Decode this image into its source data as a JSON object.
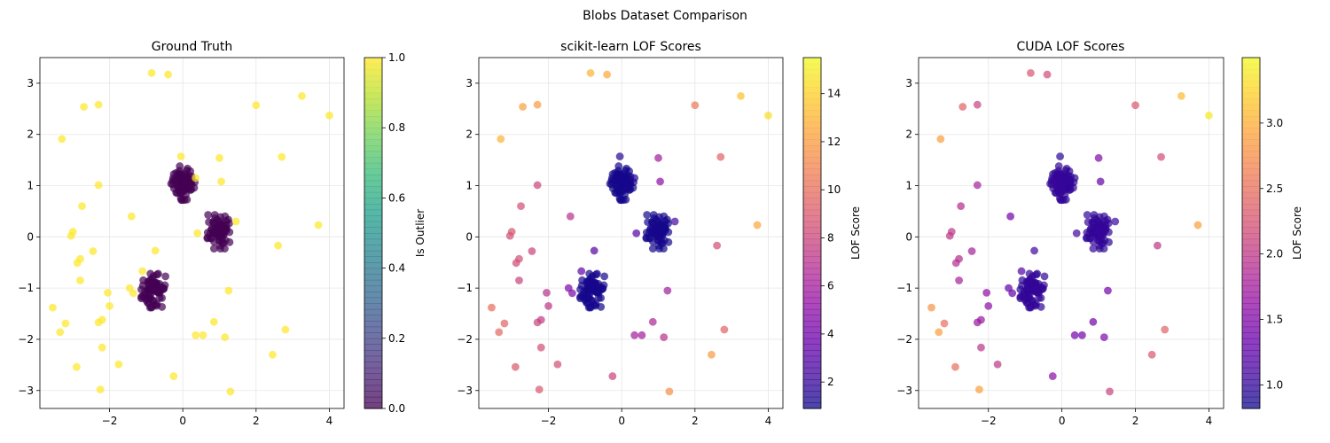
{
  "figure_title": "Blobs Dataset Comparison",
  "chart_data": [
    {
      "type": "scatter",
      "title": "Ground Truth",
      "xlabel": "",
      "ylabel": "",
      "xlim": [
        -3.9,
        4.4
      ],
      "ylim": [
        -3.35,
        3.5
      ],
      "xticks": [
        -2,
        0,
        2,
        4
      ],
      "yticks": [
        -3,
        -2,
        -1,
        0,
        1,
        2,
        3
      ],
      "grid": true,
      "colorbar": {
        "label": "Is Outlier",
        "colormap": "viridis",
        "range": [
          0.0,
          1.0
        ],
        "ticks": [
          0.0,
          0.2,
          0.4,
          0.6,
          0.8,
          1.0
        ],
        "tick_labels": [
          "0.0",
          "0.2",
          "0.4",
          "0.6",
          "0.8",
          "1.0"
        ]
      },
      "color_key": "is_outlier"
    },
    {
      "type": "scatter",
      "title": "scikit-learn LOF Scores",
      "xlabel": "",
      "ylabel": "",
      "xlim": [
        -3.9,
        4.4
      ],
      "ylim": [
        -3.35,
        3.5
      ],
      "xticks": [
        -2,
        0,
        2,
        4
      ],
      "yticks": [
        -3,
        -2,
        -1,
        0,
        1,
        2,
        3
      ],
      "grid": true,
      "colorbar": {
        "label": "LOF Score",
        "colormap": "plasma",
        "range": [
          0.9,
          15.5
        ],
        "ticks": [
          2,
          4,
          6,
          8,
          10,
          12,
          14
        ],
        "tick_labels": [
          "2",
          "4",
          "6",
          "8",
          "10",
          "12",
          "14"
        ]
      },
      "color_key": "sk_score"
    },
    {
      "type": "scatter",
      "title": "CUDA LOF Scores",
      "xlabel": "",
      "ylabel": "",
      "xlim": [
        -3.9,
        4.4
      ],
      "ylim": [
        -3.35,
        3.5
      ],
      "xticks": [
        -2,
        0,
        2,
        4
      ],
      "yticks": [
        -3,
        -2,
        -1,
        0,
        1,
        2,
        3
      ],
      "grid": true,
      "colorbar": {
        "label": "LOF Score",
        "colormap": "plasma",
        "range": [
          0.82,
          3.5
        ],
        "ticks": [
          1.0,
          1.5,
          2.0,
          2.5,
          3.0
        ],
        "tick_labels": [
          "1.0",
          "1.5",
          "2.0",
          "2.5",
          "3.0"
        ]
      },
      "color_key": "cuda_score"
    }
  ],
  "clusters": [
    {
      "center": [
        0.0,
        1.05
      ],
      "count": 75,
      "spread": 0.16,
      "is_outlier": 0,
      "sk_score": 1.0,
      "cuda_score": 0.97
    },
    {
      "center": [
        1.0,
        0.1
      ],
      "count": 75,
      "spread": 0.16,
      "is_outlier": 0,
      "sk_score": 1.0,
      "cuda_score": 0.97
    },
    {
      "center": [
        -0.8,
        -1.05
      ],
      "count": 75,
      "spread": 0.16,
      "is_outlier": 0,
      "sk_score": 1.0,
      "cuda_score": 0.97
    }
  ],
  "points": [
    {
      "x": -0.85,
      "y": 3.2,
      "is_outlier": 1,
      "sk_score": 13.0,
      "cuda_score": 2.3
    },
    {
      "x": -0.4,
      "y": 3.17,
      "is_outlier": 1,
      "sk_score": 12.6,
      "cuda_score": 2.2
    },
    {
      "x": 3.25,
      "y": 2.75,
      "is_outlier": 1,
      "sk_score": 13.6,
      "cuda_score": 3.1
    },
    {
      "x": 4.0,
      "y": 2.37,
      "is_outlier": 1,
      "sk_score": 14.6,
      "cuda_score": 3.4
    },
    {
      "x": -2.3,
      "y": 2.58,
      "is_outlier": 1,
      "sk_score": 12.0,
      "cuda_score": 2.1
    },
    {
      "x": -2.7,
      "y": 2.54,
      "is_outlier": 1,
      "sk_score": 12.3,
      "cuda_score": 2.4
    },
    {
      "x": 2.0,
      "y": 2.57,
      "is_outlier": 1,
      "sk_score": 10.5,
      "cuda_score": 2.3
    },
    {
      "x": -3.3,
      "y": 1.91,
      "is_outlier": 1,
      "sk_score": 13.0,
      "cuda_score": 2.9
    },
    {
      "x": 2.7,
      "y": 1.56,
      "is_outlier": 1,
      "sk_score": 9.5,
      "cuda_score": 2.2
    },
    {
      "x": 1.0,
      "y": 1.54,
      "is_outlier": 1,
      "sk_score": 6.0,
      "cuda_score": 1.5
    },
    {
      "x": -0.05,
      "y": 1.57,
      "is_outlier": 1,
      "sk_score": 1.5,
      "cuda_score": 0.95
    },
    {
      "x": 1.05,
      "y": 1.08,
      "is_outlier": 1,
      "sk_score": 5.2,
      "cuda_score": 1.3
    },
    {
      "x": -2.3,
      "y": 1.01,
      "is_outlier": 1,
      "sk_score": 8.0,
      "cuda_score": 1.8
    },
    {
      "x": 0.35,
      "y": 1.15,
      "is_outlier": 1,
      "sk_score": 1.5,
      "cuda_score": 0.95
    },
    {
      "x": -2.75,
      "y": 0.6,
      "is_outlier": 1,
      "sk_score": 8.5,
      "cuda_score": 1.9
    },
    {
      "x": -1.4,
      "y": 0.4,
      "is_outlier": 1,
      "sk_score": 7.0,
      "cuda_score": 1.4
    },
    {
      "x": -0.75,
      "y": -0.27,
      "is_outlier": 1,
      "sk_score": 3.0,
      "cuda_score": 1.1
    },
    {
      "x": 0.4,
      "y": 0.07,
      "is_outlier": 1,
      "sk_score": 3.0,
      "cuda_score": 1.1
    },
    {
      "x": 1.45,
      "y": 0.3,
      "is_outlier": 1,
      "sk_score": 2.5,
      "cuda_score": 1.05
    },
    {
      "x": 2.6,
      "y": -0.17,
      "is_outlier": 1,
      "sk_score": 8.5,
      "cuda_score": 2.0
    },
    {
      "x": 3.7,
      "y": 0.23,
      "is_outlier": 1,
      "sk_score": 12.5,
      "cuda_score": 2.9
    },
    {
      "x": -3.0,
      "y": 0.1,
      "is_outlier": 1,
      "sk_score": 8.8,
      "cuda_score": 2.0
    },
    {
      "x": -3.05,
      "y": 0.02,
      "is_outlier": 1,
      "sk_score": 8.5,
      "cuda_score": 2.0
    },
    {
      "x": -2.45,
      "y": -0.28,
      "is_outlier": 1,
      "sk_score": 8.0,
      "cuda_score": 1.8
    },
    {
      "x": -2.8,
      "y": -0.43,
      "is_outlier": 1,
      "sk_score": 8.5,
      "cuda_score": 1.9
    },
    {
      "x": -2.88,
      "y": -0.51,
      "is_outlier": 1,
      "sk_score": 8.3,
      "cuda_score": 1.9
    },
    {
      "x": -2.8,
      "y": -0.85,
      "is_outlier": 1,
      "sk_score": 8.0,
      "cuda_score": 1.8
    },
    {
      "x": -1.1,
      "y": -0.67,
      "is_outlier": 1,
      "sk_score": 3.5,
      "cuda_score": 1.2
    },
    {
      "x": -1.45,
      "y": -1.0,
      "is_outlier": 1,
      "sk_score": 4.5,
      "cuda_score": 1.3
    },
    {
      "x": -1.35,
      "y": -1.1,
      "is_outlier": 1,
      "sk_score": 4.5,
      "cuda_score": 1.3
    },
    {
      "x": -2.05,
      "y": -1.09,
      "is_outlier": 1,
      "sk_score": 7.0,
      "cuda_score": 1.6
    },
    {
      "x": -2.0,
      "y": -1.35,
      "is_outlier": 1,
      "sk_score": 7.2,
      "cuda_score": 1.6
    },
    {
      "x": 1.25,
      "y": -1.05,
      "is_outlier": 1,
      "sk_score": 6.0,
      "cuda_score": 1.4
    },
    {
      "x": -3.55,
      "y": -1.38,
      "is_outlier": 1,
      "sk_score": 10.0,
      "cuda_score": 2.8
    },
    {
      "x": -3.2,
      "y": -1.69,
      "is_outlier": 1,
      "sk_score": 9.5,
      "cuda_score": 2.5
    },
    {
      "x": -3.35,
      "y": -1.86,
      "is_outlier": 1,
      "sk_score": 9.8,
      "cuda_score": 2.9
    },
    {
      "x": -2.3,
      "y": -1.67,
      "is_outlier": 1,
      "sk_score": 8.0,
      "cuda_score": 1.7
    },
    {
      "x": -2.2,
      "y": -1.62,
      "is_outlier": 1,
      "sk_score": 7.5,
      "cuda_score": 1.7
    },
    {
      "x": 0.85,
      "y": -1.66,
      "is_outlier": 1,
      "sk_score": 6.5,
      "cuda_score": 1.4
    },
    {
      "x": 0.35,
      "y": -1.92,
      "is_outlier": 1,
      "sk_score": 6.0,
      "cuda_score": 1.4
    },
    {
      "x": 0.55,
      "y": -1.92,
      "is_outlier": 1,
      "sk_score": 6.0,
      "cuda_score": 1.4
    },
    {
      "x": 1.15,
      "y": -1.96,
      "is_outlier": 1,
      "sk_score": 7.0,
      "cuda_score": 1.5
    },
    {
      "x": 2.8,
      "y": -1.81,
      "is_outlier": 1,
      "sk_score": 9.5,
      "cuda_score": 2.4
    },
    {
      "x": -2.2,
      "y": -2.16,
      "is_outlier": 1,
      "sk_score": 8.5,
      "cuda_score": 2.0
    },
    {
      "x": -1.75,
      "y": -2.49,
      "is_outlier": 1,
      "sk_score": 8.5,
      "cuda_score": 2.0
    },
    {
      "x": -2.9,
      "y": -2.54,
      "is_outlier": 1,
      "sk_score": 9.0,
      "cuda_score": 2.5
    },
    {
      "x": 2.45,
      "y": -2.3,
      "is_outlier": 1,
      "sk_score": 12.0,
      "cuda_score": 2.3
    },
    {
      "x": -0.25,
      "y": -2.72,
      "is_outlier": 1,
      "sk_score": 8.0,
      "cuda_score": 1.6
    },
    {
      "x": -2.25,
      "y": -2.98,
      "is_outlier": 1,
      "sk_score": 9.0,
      "cuda_score": 2.9
    },
    {
      "x": 1.3,
      "y": -3.02,
      "is_outlier": 1,
      "sk_score": 11.5,
      "cuda_score": 2.1
    }
  ]
}
